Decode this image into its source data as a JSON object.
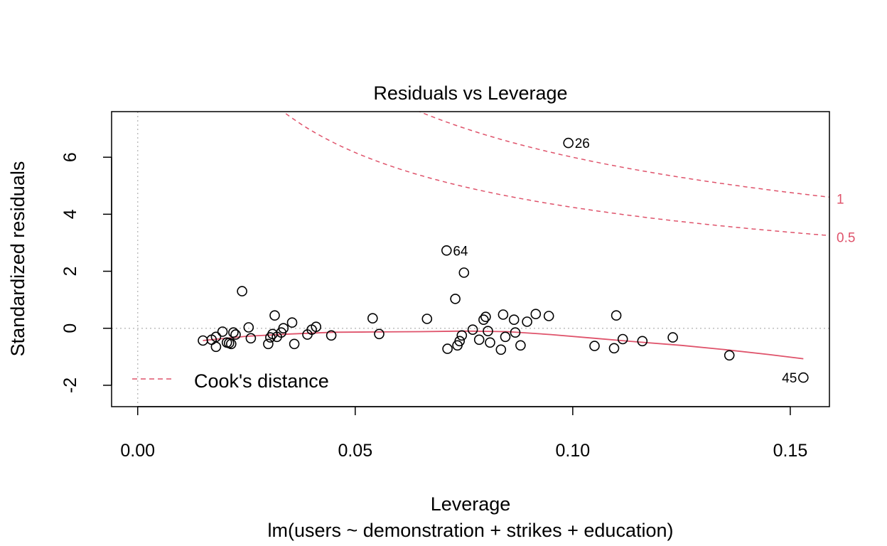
{
  "chart_data": {
    "type": "scatter",
    "title": "Residuals vs Leverage",
    "xlabel": "Leverage",
    "subtitle": "lm(users ~ demonstration + strikes + education)",
    "ylabel": "Standardized residuals",
    "xlim": [
      -0.006,
      0.159
    ],
    "ylim": [
      -2.75,
      7.6
    ],
    "x_ticks": [
      0.0,
      0.05,
      0.1,
      0.15
    ],
    "x_tick_labels": [
      "0.00",
      "0.05",
      "0.10",
      "0.15"
    ],
    "y_ticks": [
      -2,
      0,
      2,
      4,
      6
    ],
    "y_tick_labels": [
      "-2",
      "0",
      "2",
      "4",
      "6"
    ],
    "points": [
      [
        0.015,
        -0.43
      ],
      [
        0.017,
        -0.4
      ],
      [
        0.018,
        -0.3
      ],
      [
        0.018,
        -0.65
      ],
      [
        0.0195,
        -0.12
      ],
      [
        0.0205,
        -0.5
      ],
      [
        0.021,
        -0.52
      ],
      [
        0.0215,
        -0.55
      ],
      [
        0.022,
        -0.15
      ],
      [
        0.0225,
        -0.22
      ],
      [
        0.024,
        1.3
      ],
      [
        0.0255,
        0.03
      ],
      [
        0.026,
        -0.35
      ],
      [
        0.03,
        -0.55
      ],
      [
        0.0305,
        -0.32
      ],
      [
        0.031,
        -0.2
      ],
      [
        0.0315,
        0.45
      ],
      [
        0.032,
        -0.3
      ],
      [
        0.033,
        -0.15
      ],
      [
        0.0335,
        0.0
      ],
      [
        0.0355,
        0.2
      ],
      [
        0.036,
        -0.55
      ],
      [
        0.039,
        -0.22
      ],
      [
        0.04,
        -0.05
      ],
      [
        0.041,
        0.05
      ],
      [
        0.0445,
        -0.25
      ],
      [
        0.054,
        0.35
      ],
      [
        0.0555,
        -0.2
      ],
      [
        0.0665,
        0.33
      ],
      [
        0.071,
        2.73
      ],
      [
        0.0712,
        -0.72
      ],
      [
        0.073,
        1.03
      ],
      [
        0.0735,
        -0.6
      ],
      [
        0.074,
        -0.45
      ],
      [
        0.0745,
        -0.25
      ],
      [
        0.075,
        1.95
      ],
      [
        0.077,
        -0.05
      ],
      [
        0.0785,
        -0.4
      ],
      [
        0.0795,
        0.3
      ],
      [
        0.08,
        0.4
      ],
      [
        0.0805,
        -0.1
      ],
      [
        0.081,
        -0.5
      ],
      [
        0.0835,
        -0.75
      ],
      [
        0.084,
        0.48
      ],
      [
        0.0845,
        -0.3
      ],
      [
        0.0865,
        0.3
      ],
      [
        0.0868,
        -0.15
      ],
      [
        0.088,
        -0.6
      ],
      [
        0.0895,
        0.23
      ],
      [
        0.0915,
        0.5
      ],
      [
        0.0945,
        0.43
      ],
      [
        0.099,
        6.5
      ],
      [
        0.105,
        -0.62
      ],
      [
        0.1095,
        -0.7
      ],
      [
        0.11,
        0.45
      ],
      [
        0.1115,
        -0.38
      ],
      [
        0.116,
        -0.45
      ],
      [
        0.123,
        -0.32
      ],
      [
        0.136,
        -0.95
      ],
      [
        0.153,
        -1.73
      ]
    ],
    "point_labels": [
      {
        "text": "26",
        "x": 0.099,
        "y": 6.5,
        "side": "right"
      },
      {
        "text": "64",
        "x": 0.071,
        "y": 2.73,
        "side": "right"
      },
      {
        "text": "45",
        "x": 0.153,
        "y": -1.73,
        "side": "left"
      }
    ],
    "smooth_line": {
      "color": "#DF536B",
      "x": [
        0.015,
        0.025,
        0.035,
        0.045,
        0.055,
        0.065,
        0.075,
        0.085,
        0.095,
        0.105,
        0.115,
        0.125,
        0.135,
        0.145,
        0.153
      ],
      "y": [
        -0.43,
        -0.28,
        -0.2,
        -0.14,
        -0.13,
        -0.12,
        -0.1,
        -0.12,
        -0.22,
        -0.35,
        -0.48,
        -0.6,
        -0.75,
        -0.92,
        -1.07
      ]
    },
    "cook_contours": [
      {
        "level": "0.5",
        "p": 4,
        "color": "#DF536B"
      },
      {
        "level": "1",
        "p": 4,
        "color": "#DF536B"
      }
    ],
    "reference_lines": {
      "h": 0,
      "v": 0,
      "style": "dotted",
      "color": "#BEBEBE"
    },
    "legend": {
      "label": "Cook's distance",
      "position": "bottom-left",
      "style": "dashed",
      "color": "#DF536B"
    },
    "point_style": "open-circle"
  }
}
